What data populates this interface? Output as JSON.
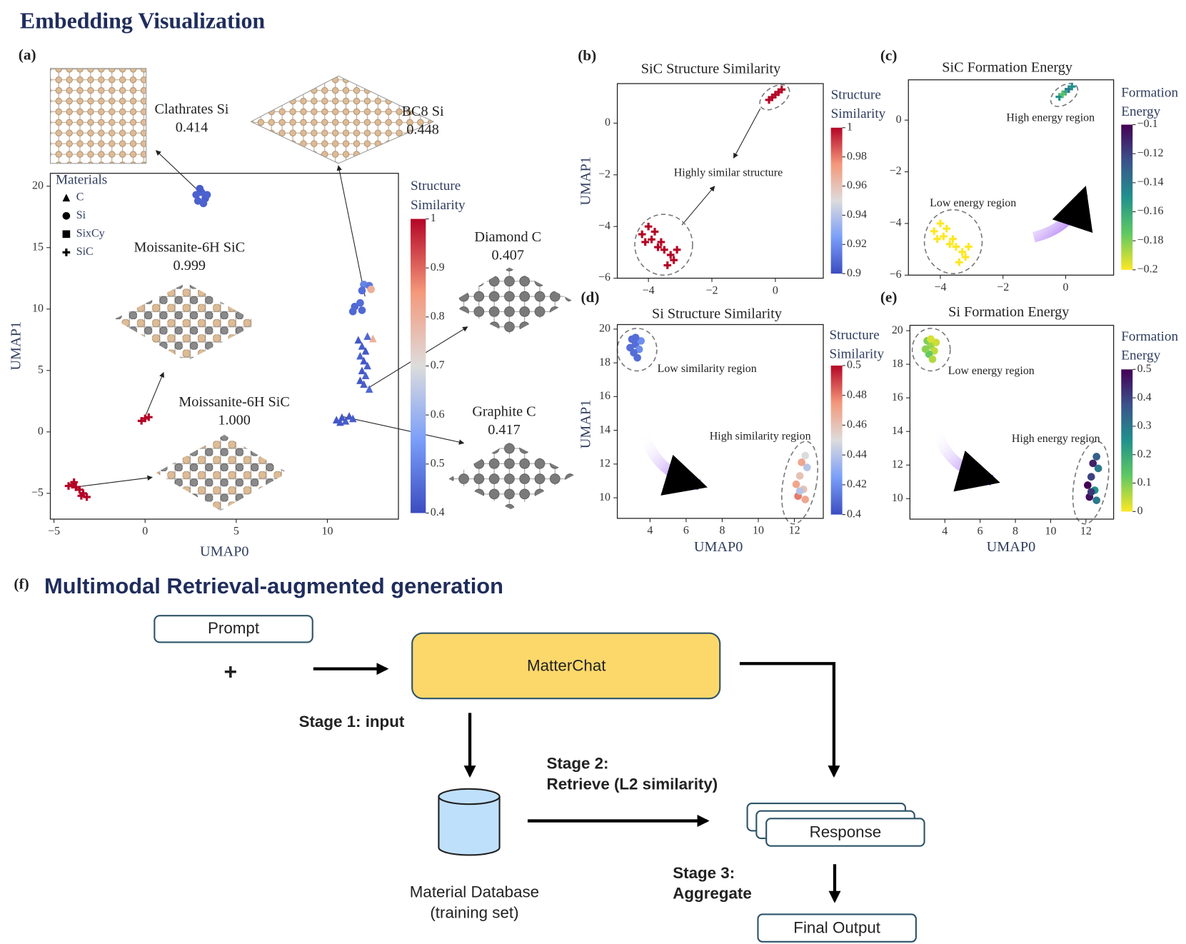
{
  "header": {
    "title": "Embedding Visualization"
  },
  "chart_data": [
    {
      "type": "scatter",
      "panel": "(a)",
      "xlabel": "UMAP0",
      "ylabel": "UMAP1",
      "xlim": [
        -5.2,
        13.9
      ],
      "ylim": [
        -7.1,
        21.05
      ],
      "xticks": [
        {
          "value": -5,
          "label": "−5"
        },
        0,
        5,
        10
      ],
      "yticks": [
        {
          "value": -5,
          "label": "−5"
        },
        0,
        5,
        10,
        15,
        20
      ],
      "legend": "upper left",
      "legend_title": "Materials",
      "series": [
        {
          "name": "C",
          "marker": "triangle",
          "x": [
            11.7,
            11.9,
            12.1,
            11.8,
            12.0,
            12.2,
            11.9,
            12.1,
            11.8,
            12.0,
            12.3,
            12.2,
            12.5,
            10.5,
            10.8,
            11.0,
            11.2,
            11.4,
            10.7
          ],
          "y": [
            7.5,
            7.0,
            6.6,
            6.2,
            5.8,
            5.4,
            5.0,
            4.6,
            4.2,
            3.9,
            3.5,
            7.8,
            7.6,
            1.0,
            1.2,
            0.9,
            1.3,
            1.1,
            0.8
          ],
          "c": [
            0.42,
            0.43,
            0.42,
            0.44,
            0.42,
            0.43,
            0.42,
            0.44,
            0.42,
            0.43,
            0.45,
            0.45,
            0.8,
            0.42,
            0.42,
            0.43,
            0.42,
            0.43,
            0.42
          ]
        },
        {
          "name": "Si",
          "marker": "circle",
          "x": [
            2.8,
            3.1,
            3.3,
            2.9,
            3.2,
            3.0,
            3.4,
            12.0,
            12.3,
            11.9,
            12.4,
            11.5,
            11.8,
            11.4,
            11.9
          ],
          "y": [
            19.3,
            19.5,
            19.0,
            18.8,
            18.6,
            19.8,
            19.3,
            12.0,
            11.9,
            11.5,
            11.6,
            10.2,
            10.5,
            9.8,
            9.9
          ],
          "c": [
            0.44,
            0.44,
            0.43,
            0.44,
            0.44,
            0.43,
            0.44,
            0.5,
            0.48,
            0.46,
            0.8,
            0.45,
            0.46,
            0.45,
            0.45
          ]
        },
        {
          "name": "SixCy",
          "marker": "square",
          "x": [],
          "y": [],
          "c": []
        },
        {
          "name": "SiC",
          "marker": "plus",
          "x": [
            -0.2,
            0.0,
            0.2,
            -4.0,
            -3.8,
            -3.6,
            -3.4,
            -3.2,
            -3.5,
            -4.2,
            -3.9
          ],
          "y": [
            0.9,
            1.1,
            1.2,
            -4.3,
            -4.5,
            -4.7,
            -5.0,
            -5.3,
            -5.2,
            -4.4,
            -4.1
          ],
          "c": [
            1,
            1,
            1,
            1,
            1,
            1,
            1,
            1,
            1,
            1,
            1
          ]
        }
      ],
      "colorbar": {
        "label": [
          "Structure",
          "Similarity"
        ],
        "colormap": "coolwarm",
        "clim": [
          0.4,
          1
        ],
        "ticks": [
          0.4,
          0.5,
          0.6,
          0.7,
          0.8,
          0.9,
          1
        ]
      },
      "annotations": [
        {
          "text": "Clathrates Si",
          "score": "0.414"
        },
        {
          "text": "BC8 Si",
          "score": "0.448"
        },
        {
          "text": "Moissanite-6H SiC",
          "score": "0.999"
        },
        {
          "text": "Moissanite-6H SiC",
          "score": "1.000"
        },
        {
          "text": "Diamond C",
          "score": "0.407"
        },
        {
          "text": "Graphite C",
          "score": "0.417"
        }
      ]
    },
    {
      "type": "scatter",
      "panel": "(b)",
      "title": "SiC Structure Similarity",
      "ylabel": "UMAP1",
      "xlim": [
        -4.98,
        1.51
      ],
      "ylim": [
        -6,
        1.53
      ],
      "xticks": [
        {
          "value": -4,
          "label": "−4"
        },
        {
          "value": -2,
          "label": "−2"
        },
        0
      ],
      "yticks": [
        {
          "value": -6,
          "label": "−6"
        },
        {
          "value": -4,
          "label": "−4"
        },
        {
          "value": -2,
          "label": "−2"
        },
        0
      ],
      "series": [
        {
          "marker": "plus",
          "x": [
            -0.2,
            0.0,
            0.1,
            0.2,
            -0.1,
            -4.2,
            -4.0,
            -3.8,
            -3.6,
            -3.5,
            -3.3,
            -3.2,
            -3.1,
            -3.4,
            -3.9,
            -4.1,
            -3.7
          ],
          "y": [
            0.9,
            1.1,
            1.2,
            1.3,
            1.0,
            -4.3,
            -4.0,
            -4.2,
            -4.6,
            -4.9,
            -5.1,
            -5.3,
            -4.9,
            -5.5,
            -4.5,
            -4.6,
            -4.8
          ],
          "c": [
            1,
            1,
            1,
            1,
            1,
            1,
            1,
            1,
            1,
            1,
            1,
            1,
            1,
            1,
            1,
            1,
            1
          ]
        }
      ],
      "colorbar": {
        "label": [
          "Structure",
          "Similarity"
        ],
        "colormap": "coolwarm",
        "clim": [
          0.9,
          1
        ],
        "ticks": [
          0.9,
          0.92,
          0.94,
          0.96,
          0.98,
          1
        ]
      },
      "annotations": [
        "Highly similar structure"
      ]
    },
    {
      "type": "scatter",
      "panel": "(c)",
      "title": "SiC Formation Energy",
      "xlim": [
        -5.02,
        1.53
      ],
      "ylim": [
        -6,
        1.56
      ],
      "xticks": [
        {
          "value": -4,
          "label": "−4"
        },
        {
          "value": -2,
          "label": "−2"
        },
        0
      ],
      "yticks": [
        {
          "value": -6,
          "label": "−6"
        },
        {
          "value": -4,
          "label": "−4"
        },
        {
          "value": -2,
          "label": "−2"
        },
        0
      ],
      "series": [
        {
          "marker": "plus",
          "x": [
            -0.2,
            0.0,
            0.1,
            -0.1,
            0.2,
            -4.2,
            -4.0,
            -3.8,
            -3.6,
            -3.5,
            -3.3,
            -3.2,
            -3.1,
            -3.4,
            -3.9,
            -4.1,
            -3.7
          ],
          "y": [
            0.9,
            1.1,
            1.2,
            1.0,
            1.3,
            -4.3,
            -4.0,
            -4.2,
            -4.6,
            -4.9,
            -5.1,
            -5.3,
            -4.9,
            -5.5,
            -4.5,
            -4.6,
            -4.8
          ],
          "c": [
            -0.15,
            -0.16,
            -0.14,
            -0.17,
            -0.15,
            -0.2,
            -0.2,
            -0.2,
            -0.2,
            -0.2,
            -0.2,
            -0.2,
            -0.2,
            -0.2,
            -0.2,
            -0.2,
            -0.2
          ]
        }
      ],
      "colorbar": {
        "label": [
          "Formation",
          "Energy"
        ],
        "colormap": "viridis_r",
        "clim": [
          -0.2,
          -0.1
        ],
        "ticks": [
          {
            "value": -0.2,
            "label": "−0.2"
          },
          {
            "value": -0.18,
            "label": "−0.18"
          },
          {
            "value": -0.16,
            "label": "−0.16"
          },
          {
            "value": -0.14,
            "label": "−0.14"
          },
          {
            "value": -0.12,
            "label": "−0.12"
          },
          {
            "value": -0.1,
            "label": "−0.1"
          }
        ]
      },
      "annotations": [
        "High energy region",
        "Low energy region"
      ]
    },
    {
      "type": "scatter",
      "panel": "(d)",
      "title": "Si Structure Similarity",
      "xlabel": "UMAP0",
      "ylabel": "UMAP1",
      "xlim": [
        2.19,
        13.6
      ],
      "ylim": [
        8.78,
        20.27
      ],
      "xticks": [
        4,
        6,
        8,
        10,
        12
      ],
      "yticks": [
        10,
        12,
        14,
        16,
        18,
        20
      ],
      "series": [
        {
          "marker": "circle",
          "x": [
            3.0,
            3.2,
            3.4,
            3.1,
            3.3,
            3.5,
            2.9,
            3.2,
            12.6,
            12.4,
            12.7,
            12.3,
            12.1,
            12.5,
            12.2,
            12.6,
            12.3
          ],
          "y": [
            19.4,
            19.1,
            18.8,
            18.6,
            18.3,
            19.3,
            18.9,
            19.5,
            12.5,
            12.1,
            11.8,
            11.3,
            10.8,
            10.5,
            10.1,
            9.9,
            10.4
          ],
          "c": [
            0.41,
            0.41,
            0.42,
            0.41,
            0.41,
            0.42,
            0.41,
            0.41,
            0.45,
            0.47,
            0.44,
            0.46,
            0.47,
            0.46,
            0.48,
            0.47,
            0.44
          ]
        }
      ],
      "colorbar": {
        "label": [
          "Structure",
          "Similarity"
        ],
        "colormap": "coolwarm",
        "clim": [
          0.4,
          0.5
        ],
        "ticks": [
          0.4,
          0.42,
          0.44,
          0.46,
          0.48,
          0.5
        ]
      },
      "annotations": [
        "Low similarity region",
        "High similarity region"
      ]
    },
    {
      "type": "scatter",
      "panel": "(e)",
      "title": "Si Formation Energy",
      "xlabel": "UMAP0",
      "xlim": [
        2.02,
        13.57
      ],
      "ylim": [
        8.78,
        20.32
      ],
      "xticks": [
        4,
        6,
        8,
        10,
        12
      ],
      "yticks": [
        10,
        12,
        14,
        16,
        18,
        20
      ],
      "series": [
        {
          "marker": "circle",
          "x": [
            3.0,
            3.2,
            3.4,
            3.1,
            3.3,
            3.5,
            2.9,
            3.2,
            12.6,
            12.4,
            12.7,
            12.3,
            12.1,
            12.5,
            12.2,
            12.6,
            12.3
          ],
          "y": [
            19.4,
            19.1,
            18.8,
            18.6,
            18.3,
            19.3,
            18.9,
            19.5,
            12.5,
            12.1,
            11.8,
            11.3,
            10.8,
            10.5,
            10.1,
            9.9,
            10.4
          ],
          "c": [
            0.1,
            0.08,
            0.05,
            0.12,
            0.06,
            0.04,
            0.09,
            0.03,
            0.35,
            0.45,
            0.3,
            0.4,
            0.5,
            0.25,
            0.48,
            0.3,
            0.42
          ]
        }
      ],
      "colorbar": {
        "label": [
          "Formation",
          "Energy"
        ],
        "colormap": "viridis_r",
        "clim": [
          0,
          0.5
        ],
        "ticks": [
          0,
          0.1,
          0.2,
          0.3,
          0.4,
          0.5
        ]
      },
      "annotations": [
        "Low energy region",
        "High energy region"
      ]
    }
  ],
  "diagram": {
    "panel": "(f)",
    "title": "Multimodal Retrieval-augmented generation",
    "prompt": "Prompt",
    "plus": "+",
    "model": "MatterChat",
    "response": "Response",
    "output": "Final Output",
    "database": [
      "Material Database",
      "(training set)"
    ],
    "stage1": "Stage 1: input",
    "stage2": [
      "Stage 2:",
      "Retrieve (L2 similarity)"
    ],
    "stage3": [
      "Stage 3:",
      "Aggregate"
    ]
  }
}
